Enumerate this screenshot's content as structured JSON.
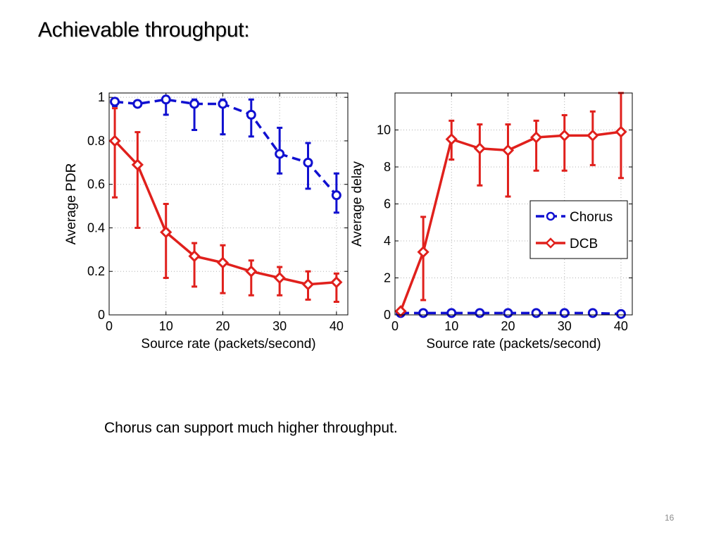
{
  "slide": {
    "title": "Achievable throughput:",
    "caption": "Chorus can support much higher throughput.",
    "page_number": "16"
  },
  "colors": {
    "chorus": "#1010d0",
    "dcb": "#e0201c",
    "grid": "#b0b0b0"
  },
  "chart_data": [
    {
      "type": "line",
      "title": "",
      "xlabel": "Source rate (packets/second)",
      "ylabel": "Average PDR",
      "xlim": [
        0,
        42
      ],
      "ylim": [
        0,
        1.02
      ],
      "xticks": [
        0,
        10,
        20,
        30,
        40
      ],
      "xtick_labels": [
        "0",
        "10",
        "20",
        "30",
        "40"
      ],
      "yticks": [
        0,
        0.2,
        0.4,
        0.6,
        0.8,
        1
      ],
      "ytick_labels": [
        "0",
        "0.2",
        "0.4",
        "0.6",
        "0.8",
        "1"
      ],
      "grid": true,
      "legend": null,
      "series": [
        {
          "name": "Chorus",
          "style": "dashed",
          "marker": "circle",
          "color": "#1010d0",
          "x": [
            1,
            5,
            10,
            15,
            20,
            25,
            30,
            35,
            40
          ],
          "y": [
            0.98,
            0.97,
            0.99,
            0.97,
            0.97,
            0.92,
            0.74,
            0.7,
            0.55
          ],
          "err_low": [
            0.96,
            0.97,
            0.92,
            0.85,
            0.83,
            0.82,
            0.65,
            0.58,
            0.47
          ],
          "err_high": [
            0.98,
            0.97,
            0.99,
            0.99,
            0.99,
            0.99,
            0.86,
            0.79,
            0.65
          ]
        },
        {
          "name": "DCB",
          "style": "solid",
          "marker": "diamond",
          "color": "#e0201c",
          "x": [
            1,
            5,
            10,
            15,
            20,
            25,
            30,
            35,
            40
          ],
          "y": [
            0.8,
            0.69,
            0.38,
            0.27,
            0.24,
            0.2,
            0.17,
            0.14,
            0.15
          ],
          "err_low": [
            0.54,
            0.4,
            0.17,
            0.13,
            0.1,
            0.09,
            0.09,
            0.07,
            0.06
          ],
          "err_high": [
            0.95,
            0.84,
            0.51,
            0.33,
            0.32,
            0.25,
            0.22,
            0.2,
            0.19
          ]
        }
      ]
    },
    {
      "type": "line",
      "title": "",
      "xlabel": "Source rate (packets/second)",
      "ylabel": "Average delay",
      "xlim": [
        0,
        42
      ],
      "ylim": [
        0,
        12
      ],
      "xticks": [
        0,
        10,
        20,
        30,
        40
      ],
      "xtick_labels": [
        "0",
        "10",
        "20",
        "30",
        "40"
      ],
      "yticks": [
        0,
        2,
        4,
        6,
        8,
        10
      ],
      "ytick_labels": [
        "0",
        "2",
        "4",
        "6",
        "8",
        "10"
      ],
      "grid": true,
      "legend": "right",
      "series": [
        {
          "name": "Chorus",
          "style": "dashed",
          "marker": "circle",
          "color": "#1010d0",
          "x": [
            1,
            5,
            10,
            15,
            20,
            25,
            30,
            35,
            40
          ],
          "y": [
            0.1,
            0.1,
            0.1,
            0.1,
            0.1,
            0.1,
            0.1,
            0.1,
            0.05
          ],
          "err_low": null,
          "err_high": null
        },
        {
          "name": "DCB",
          "style": "solid",
          "marker": "diamond",
          "color": "#e0201c",
          "x": [
            1,
            5,
            10,
            15,
            20,
            25,
            30,
            35,
            40
          ],
          "y": [
            0.2,
            3.4,
            9.5,
            9.0,
            8.9,
            9.6,
            9.7,
            9.7,
            9.9
          ],
          "err_low": [
            0.2,
            0.8,
            8.4,
            7.0,
            6.4,
            7.8,
            7.8,
            8.1,
            7.4
          ],
          "err_high": [
            0.2,
            5.3,
            10.5,
            10.3,
            10.3,
            10.5,
            10.8,
            11.0,
            12.0
          ]
        }
      ]
    }
  ]
}
